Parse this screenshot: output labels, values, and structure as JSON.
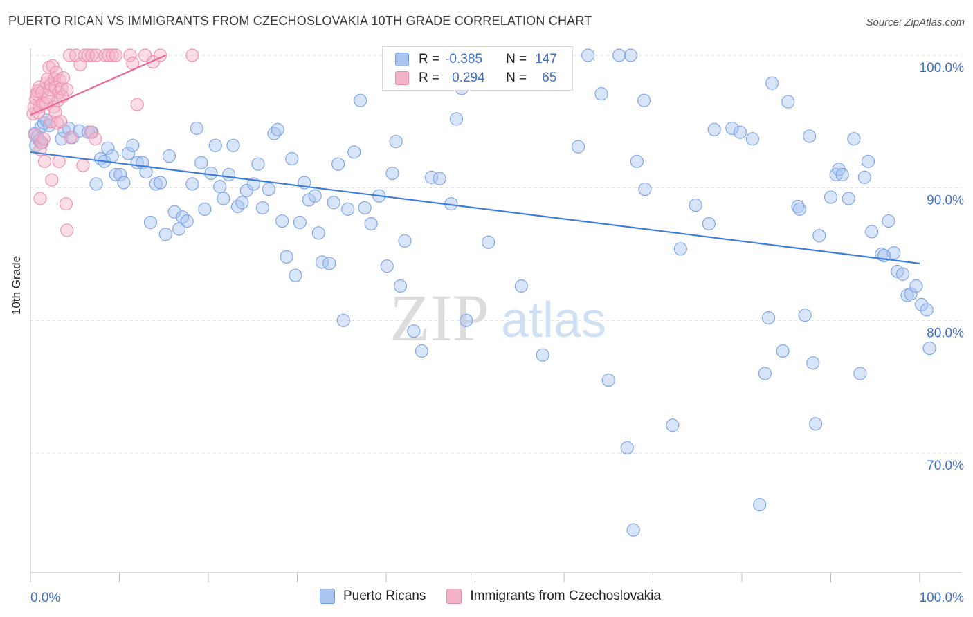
{
  "header": {
    "title": "PUERTO RICAN VS IMMIGRANTS FROM CZECHOSLOVAKIA 10TH GRADE CORRELATION CHART",
    "source": "Source: ZipAtlas.com"
  },
  "watermark": {
    "zip": "ZIP",
    "atlas": "atlas"
  },
  "legend": {
    "rows": [
      {
        "r_label": "R =",
        "r_value": "-0.385",
        "n_label": "N =",
        "n_value": "147",
        "color": "#a9c4ef"
      },
      {
        "r_label": "R =",
        "r_value": "0.294",
        "n_label": "N =",
        "n_value": "65",
        "color": "#f5b3c8"
      }
    ]
  },
  "bottom_legend": [
    {
      "label": "Puerto Ricans",
      "color": "#a9c4ef"
    },
    {
      "label": "Immigrants from Czechoslovakia",
      "color": "#f5b3c8"
    }
  ],
  "colors": {
    "blue": "#3d7dd8",
    "blue_fill": "#a9c4ef",
    "pink": "#e8668f",
    "pink_fill": "#f5b3c8",
    "tick_text": "#3d6fc9",
    "grid": "#dddddd"
  },
  "chart_data": {
    "type": "scatter",
    "title": "PUERTO RICAN VS IMMIGRANTS FROM CZECHOSLOVAKIA 10TH GRADE CORRELATION CHART",
    "xlabel": "",
    "ylabel": "10th Grade",
    "xlim": [
      0,
      100
    ],
    "ylim": [
      60.5,
      101.5
    ],
    "x_tick_labels": [
      "0.0%",
      "100.0%"
    ],
    "y_ticks": [
      70,
      80,
      90,
      100
    ],
    "y_tick_labels": [
      "70.0%",
      "80.0%",
      "90.0%",
      "100.0%"
    ],
    "grid": true,
    "legend_position": "top-center",
    "series": [
      {
        "name": "Puerto Ricans",
        "color": "#3d7dd8",
        "trend": {
          "x": [
            0,
            100
          ],
          "y": [
            92.7,
            84.3
          ]
        },
        "points": [
          [
            0.5,
            94.1
          ],
          [
            0.6,
            93.2
          ],
          [
            0.8,
            93.9
          ],
          [
            1.0,
            93.6
          ],
          [
            1.2,
            94.6
          ],
          [
            1.3,
            93.4
          ],
          [
            1.5,
            94.9
          ],
          [
            1.8,
            95.1
          ],
          [
            2.1,
            94.7
          ],
          [
            3.5,
            93.7
          ],
          [
            3.8,
            94.3
          ],
          [
            4.3,
            94.5
          ],
          [
            4.7,
            93.8
          ],
          [
            5.5,
            94.3
          ],
          [
            6.5,
            94.2
          ],
          [
            6.9,
            94.2
          ],
          [
            7.4,
            90.3
          ],
          [
            7.9,
            92.2
          ],
          [
            8.3,
            92.0
          ],
          [
            8.7,
            93.0
          ],
          [
            9.2,
            92.4
          ],
          [
            9.6,
            91.0
          ],
          [
            10.1,
            91.0
          ],
          [
            10.5,
            90.4
          ],
          [
            11.0,
            92.6
          ],
          [
            11.5,
            93.2
          ],
          [
            12.0,
            91.9
          ],
          [
            12.6,
            91.9
          ],
          [
            13.0,
            91.2
          ],
          [
            13.5,
            87.4
          ],
          [
            14.1,
            90.3
          ],
          [
            14.6,
            90.4
          ],
          [
            15.2,
            86.5
          ],
          [
            15.6,
            92.4
          ],
          [
            16.2,
            88.2
          ],
          [
            16.7,
            86.9
          ],
          [
            17.1,
            87.8
          ],
          [
            17.6,
            87.5
          ],
          [
            18.2,
            90.3
          ],
          [
            18.7,
            94.5
          ],
          [
            19.2,
            91.9
          ],
          [
            19.6,
            88.4
          ],
          [
            20.3,
            91.1
          ],
          [
            20.8,
            93.2
          ],
          [
            21.3,
            90.1
          ],
          [
            21.7,
            89.2
          ],
          [
            22.3,
            91.0
          ],
          [
            22.8,
            93.2
          ],
          [
            23.3,
            88.6
          ],
          [
            23.8,
            88.9
          ],
          [
            24.3,
            89.8
          ],
          [
            25.1,
            90.3
          ],
          [
            25.6,
            91.8
          ],
          [
            26.1,
            88.5
          ],
          [
            26.8,
            89.9
          ],
          [
            27.4,
            94.1
          ],
          [
            27.8,
            94.4
          ],
          [
            28.3,
            87.5
          ],
          [
            28.8,
            84.8
          ],
          [
            29.4,
            92.2
          ],
          [
            29.8,
            83.4
          ],
          [
            30.3,
            87.4
          ],
          [
            30.8,
            90.4
          ],
          [
            31.3,
            89.1
          ],
          [
            32.0,
            89.4
          ],
          [
            32.4,
            86.6
          ],
          [
            32.8,
            84.4
          ],
          [
            33.6,
            84.3
          ],
          [
            34.1,
            88.9
          ],
          [
            34.6,
            91.8
          ],
          [
            35.2,
            80.0
          ],
          [
            35.7,
            88.4
          ],
          [
            36.4,
            92.7
          ],
          [
            37.1,
            96.6
          ],
          [
            37.6,
            88.5
          ],
          [
            38.3,
            87.3
          ],
          [
            39.2,
            89.4
          ],
          [
            40.1,
            84.1
          ],
          [
            40.7,
            91.1
          ],
          [
            41.1,
            93.5
          ],
          [
            41.6,
            82.6
          ],
          [
            42.1,
            86.0
          ],
          [
            43.1,
            79.2
          ],
          [
            44.0,
            77.7
          ],
          [
            45.1,
            90.8
          ],
          [
            46.0,
            90.7
          ],
          [
            46.7,
            99.1
          ],
          [
            47.3,
            88.8
          ],
          [
            47.9,
            95.2
          ],
          [
            48.5,
            97.5
          ],
          [
            49.0,
            80.0
          ],
          [
            51.5,
            85.9
          ],
          [
            53.6,
            100.0
          ],
          [
            55.2,
            82.6
          ],
          [
            57.6,
            77.4
          ],
          [
            58.2,
            100.0
          ],
          [
            59.6,
            100.0
          ],
          [
            61.6,
            93.1
          ],
          [
            62.7,
            100.0
          ],
          [
            65.0,
            75.5
          ],
          [
            66.2,
            100.0
          ],
          [
            67.1,
            70.4
          ],
          [
            67.5,
            100.0
          ],
          [
            67.8,
            64.2
          ],
          [
            68.2,
            92.0
          ],
          [
            69.1,
            89.9
          ],
          [
            72.2,
            72.1
          ],
          [
            73.1,
            85.4
          ],
          [
            74.8,
            88.7
          ],
          [
            76.3,
            87.3
          ],
          [
            78.9,
            94.5
          ],
          [
            81.2,
            93.7
          ],
          [
            82.0,
            66.1
          ],
          [
            82.6,
            76.0
          ],
          [
            83.0,
            80.2
          ],
          [
            83.4,
            97.9
          ],
          [
            86.3,
            88.6
          ],
          [
            86.5,
            88.4
          ],
          [
            87.1,
            80.4
          ],
          [
            87.6,
            93.9
          ],
          [
            88.0,
            76.8
          ],
          [
            88.3,
            72.2
          ],
          [
            88.7,
            86.4
          ],
          [
            90.0,
            89.3
          ],
          [
            90.6,
            91.0
          ],
          [
            90.9,
            91.4
          ],
          [
            91.3,
            91.0
          ],
          [
            92.0,
            89.2
          ],
          [
            93.3,
            76.0
          ],
          [
            93.8,
            90.8
          ],
          [
            94.2,
            92.0
          ],
          [
            94.6,
            86.7
          ],
          [
            95.7,
            85.0
          ],
          [
            96.5,
            87.5
          ],
          [
            97.1,
            85.1
          ],
          [
            97.5,
            83.7
          ],
          [
            98.1,
            83.5
          ],
          [
            98.6,
            81.9
          ],
          [
            99.0,
            82.0
          ],
          [
            99.6,
            82.6
          ],
          [
            100.2,
            81.2
          ],
          [
            100.8,
            80.8
          ],
          [
            101.1,
            77.9
          ],
          [
            96.0,
            84.9
          ],
          [
            92.6,
            93.7
          ],
          [
            84.6,
            77.7
          ],
          [
            79.8,
            94.2
          ],
          [
            85.2,
            96.5
          ],
          [
            69.0,
            96.6
          ],
          [
            76.9,
            94.4
          ],
          [
            64.2,
            97.1
          ]
        ]
      },
      {
        "name": "Immigrants from Czechoslovakia",
        "color": "#e8668f",
        "trend": {
          "x": [
            0,
            15.2
          ],
          "y": [
            95.5,
            100.0
          ]
        },
        "points": [
          [
            0.3,
            95.6
          ],
          [
            0.4,
            96.1
          ],
          [
            0.5,
            94.0
          ],
          [
            0.6,
            96.7
          ],
          [
            0.7,
            97.1
          ],
          [
            0.8,
            97.3
          ],
          [
            0.9,
            95.7
          ],
          [
            1.0,
            97.6
          ],
          [
            1.0,
            96.1
          ],
          [
            1.1,
            92.9
          ],
          [
            1.1,
            89.2
          ],
          [
            1.2,
            93.4
          ],
          [
            1.3,
            97.2
          ],
          [
            1.4,
            96.4
          ],
          [
            1.5,
            93.7
          ],
          [
            1.6,
            92.0
          ],
          [
            1.7,
            96.4
          ],
          [
            1.8,
            97.9
          ],
          [
            1.9,
            98.2
          ],
          [
            2.0,
            96.8
          ],
          [
            2.1,
            99.1
          ],
          [
            2.2,
            97.4
          ],
          [
            2.3,
            95.0
          ],
          [
            2.3,
            97.8
          ],
          [
            2.4,
            90.6
          ],
          [
            2.5,
            99.2
          ],
          [
            2.6,
            96.1
          ],
          [
            2.7,
            98.2
          ],
          [
            2.8,
            97.6
          ],
          [
            2.8,
            95.7
          ],
          [
            2.9,
            98.7
          ],
          [
            3.0,
            94.9
          ],
          [
            3.1,
            96.6
          ],
          [
            3.2,
            97.2
          ],
          [
            3.2,
            92.0
          ],
          [
            3.3,
            98.1
          ],
          [
            3.4,
            95.0
          ],
          [
            3.5,
            97.5
          ],
          [
            3.6,
            96.9
          ],
          [
            3.7,
            98.3
          ],
          [
            4.0,
            88.8
          ],
          [
            4.1,
            97.4
          ],
          [
            4.1,
            86.8
          ],
          [
            4.4,
            100.0
          ],
          [
            4.5,
            93.8
          ],
          [
            5.1,
            100.0
          ],
          [
            5.6,
            99.3
          ],
          [
            5.9,
            91.7
          ],
          [
            6.1,
            100.0
          ],
          [
            6.5,
            100.0
          ],
          [
            6.8,
            94.2
          ],
          [
            6.9,
            100.0
          ],
          [
            7.3,
            93.7
          ],
          [
            7.4,
            100.0
          ],
          [
            8.4,
            100.0
          ],
          [
            8.8,
            100.0
          ],
          [
            9.2,
            100.0
          ],
          [
            9.6,
            100.0
          ],
          [
            11.2,
            100.0
          ],
          [
            11.5,
            99.4
          ],
          [
            12.0,
            96.3
          ],
          [
            12.9,
            100.0
          ],
          [
            13.8,
            99.5
          ],
          [
            18.2,
            100.0
          ],
          [
            14.6,
            100.0
          ]
        ]
      }
    ]
  }
}
